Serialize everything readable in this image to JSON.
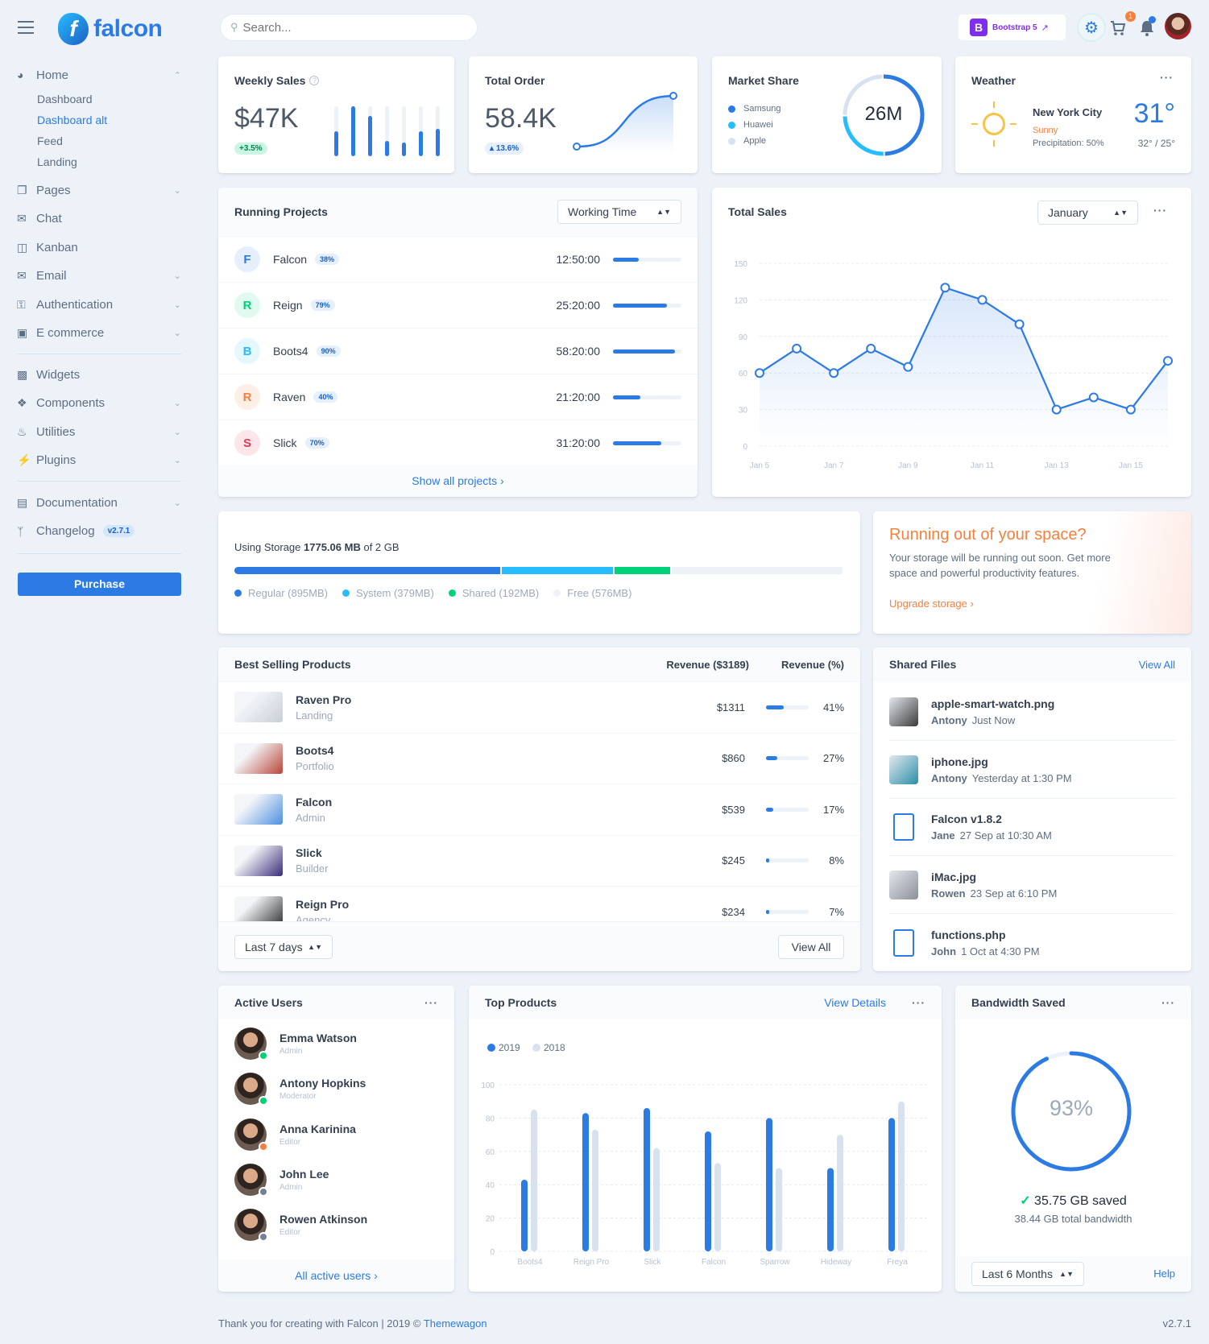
{
  "brand": {
    "name": "falcon",
    "menu_icon": "hamburger-icon",
    "logo_icon": "falcon-logo"
  },
  "topbar": {
    "search_placeholder": "Search...",
    "bootstrap_label": "Bootstrap 5",
    "cart_count": "1",
    "icons": [
      "gear-icon",
      "cart-icon",
      "bell-icon",
      "avatar"
    ]
  },
  "sidebar": {
    "home": {
      "label": "Home",
      "icon": "pie-chart-icon",
      "children": [
        "Dashboard",
        "Dashboard alt",
        "Feed",
        "Landing"
      ],
      "active_child": "Dashboard alt"
    },
    "items": [
      {
        "label": "Pages",
        "icon": "copy-icon",
        "chevron": true
      },
      {
        "label": "Chat",
        "icon": "comments-icon",
        "chevron": false
      },
      {
        "label": "Kanban",
        "icon": "trello-icon",
        "chevron": false
      },
      {
        "label": "Email",
        "icon": "envelope-open-icon",
        "chevron": true
      },
      {
        "label": "Authentication",
        "icon": "unlock-icon",
        "chevron": true
      },
      {
        "label": "E commerce",
        "icon": "cart-icon",
        "chevron": true
      }
    ],
    "items2": [
      {
        "label": "Widgets",
        "icon": "chart-icon",
        "chevron": false
      },
      {
        "label": "Components",
        "icon": "puzzle-icon",
        "chevron": true
      },
      {
        "label": "Utilities",
        "icon": "fire-icon",
        "chevron": true
      },
      {
        "label": "Plugins",
        "icon": "plug-icon",
        "chevron": true
      }
    ],
    "items3": [
      {
        "label": "Documentation",
        "icon": "book-icon",
        "chevron": true
      },
      {
        "label": "Changelog",
        "icon": "code-branch-icon",
        "chevron": false,
        "badge": "v2.7.1"
      }
    ],
    "purchase": "Purchase"
  },
  "weekly_sales": {
    "title": "Weekly Sales",
    "value": "$47K",
    "change": "+3.5%",
    "bars_percent": [
      50,
      100,
      80,
      30,
      28,
      50,
      55
    ]
  },
  "total_order": {
    "title": "Total Order",
    "value": "58.4K",
    "change": "13.6%"
  },
  "market_share": {
    "title": "Market Share",
    "total": "26M",
    "legend": [
      {
        "name": "Samsung",
        "color": "#2c7be5",
        "share": 50
      },
      {
        "name": "Huawei",
        "color": "#27bcfd",
        "share": 25
      },
      {
        "name": "Apple",
        "color": "#d8e2ef",
        "share": 25
      }
    ]
  },
  "weather": {
    "title": "Weather",
    "city": "New York City",
    "condition": "Sunny",
    "precipitation": "Precipitation: 50%",
    "temp": "31°",
    "range": "32° / 25°"
  },
  "running_projects": {
    "title": "Running Projects",
    "select": "Working Time",
    "footer": "Show all projects",
    "rows": [
      {
        "initial": "F",
        "name": "Falcon",
        "percent": "38%",
        "time": "12:50:00",
        "progress": 38,
        "color": "#2c7be5",
        "bg": "#e6effc"
      },
      {
        "initial": "R",
        "name": "Reign",
        "percent": "79%",
        "time": "25:20:00",
        "progress": 79,
        "color": "#00d27a",
        "bg": "#e0faef"
      },
      {
        "initial": "B",
        "name": "Boots4",
        "percent": "90%",
        "time": "58:20:00",
        "progress": 90,
        "color": "#27bcfd",
        "bg": "#e5f7ff"
      },
      {
        "initial": "R",
        "name": "Raven",
        "percent": "40%",
        "time": "21:20:00",
        "progress": 40,
        "color": "#f5803e",
        "bg": "#feefe6"
      },
      {
        "initial": "S",
        "name": "Slick",
        "percent": "70%",
        "time": "31:20:00",
        "progress": 70,
        "color": "#e63757",
        "bg": "#fce6ea"
      }
    ]
  },
  "total_sales": {
    "title": "Total Sales",
    "select": "January"
  },
  "storage": {
    "label": "Using Storage",
    "used": "1775.06 MB",
    "of": "of 2 GB",
    "segments": [
      {
        "name": "Regular (895MB)",
        "mb": 895,
        "color": "#2c7be5"
      },
      {
        "name": "System (379MB)",
        "mb": 379,
        "color": "#27bcfd"
      },
      {
        "name": "Shared (192MB)",
        "mb": 192,
        "color": "#00d27a"
      },
      {
        "name": "Free (576MB)",
        "mb": 576,
        "color": "#edf2f9"
      }
    ]
  },
  "upgrade": {
    "title": "Running out of your space?",
    "text": "Your storage will be running out soon. Get more space and powerful productivity features.",
    "link": "Upgrade storage"
  },
  "best_selling": {
    "title": "Best Selling Products",
    "col1": "Revenue ($3189)",
    "col2": "Revenue (%)",
    "select": "Last 7 days",
    "view_all": "View All",
    "rows": [
      {
        "name": "Raven Pro",
        "category": "Landing",
        "revenue": "$1311",
        "percent": "41%",
        "value": 41,
        "thumb": "#c9cfd8"
      },
      {
        "name": "Boots4",
        "category": "Portfolio",
        "revenue": "$860",
        "percent": "27%",
        "value": 27,
        "thumb": "#b8453a"
      },
      {
        "name": "Falcon",
        "category": "Admin",
        "revenue": "$539",
        "percent": "17%",
        "value": 17,
        "thumb": "#4d8fe0"
      },
      {
        "name": "Slick",
        "category": "Builder",
        "revenue": "$245",
        "percent": "8%",
        "value": 8,
        "thumb": "#3a2c7a"
      },
      {
        "name": "Reign Pro",
        "category": "Agency",
        "revenue": "$234",
        "percent": "7%",
        "value": 7,
        "thumb": "#2e2e2e"
      }
    ]
  },
  "shared_files": {
    "title": "Shared Files",
    "view_all": "View All",
    "rows": [
      {
        "name": "apple-smart-watch.png",
        "user": "Antony",
        "time": "Just Now",
        "type": "image",
        "color": "#3b3b3b"
      },
      {
        "name": "iphone.jpg",
        "user": "Antony",
        "time": "Yesterday at 1:30 PM",
        "type": "image",
        "color": "#2a8fa8"
      },
      {
        "name": "Falcon v1.8.2",
        "user": "Jane",
        "time": "27 Sep at 10:30 AM",
        "type": "zip-file-icon",
        "color": "#2c7be5"
      },
      {
        "name": "iMac.jpg",
        "user": "Rowen",
        "time": "23 Sep at 6:10 PM",
        "type": "image",
        "color": "#8a8f99"
      },
      {
        "name": "functions.php",
        "user": "John",
        "time": "1 Oct at 4:30 PM",
        "type": "document-file-icon",
        "color": "#2c7be5"
      }
    ]
  },
  "active_users": {
    "title": "Active Users",
    "footer": "All active users",
    "rows": [
      {
        "name": "Emma Watson",
        "role": "Admin",
        "status": "online",
        "status_color": "#00d27a"
      },
      {
        "name": "Antony Hopkins",
        "role": "Moderator",
        "status": "online",
        "status_color": "#00d27a"
      },
      {
        "name": "Anna Karinina",
        "role": "Editor",
        "status": "away",
        "status_color": "#f5803e"
      },
      {
        "name": "John Lee",
        "role": "Admin",
        "status": "offline",
        "status_color": "#748194"
      },
      {
        "name": "Rowen Atkinson",
        "role": "Editor",
        "status": "offline",
        "status_color": "#748194"
      }
    ]
  },
  "top_products": {
    "title": "Top Products",
    "view_details": "View Details"
  },
  "bandwidth": {
    "title": "Bandwidth Saved",
    "percent": 93,
    "percent_label": "93%",
    "saved": "35.75 GB saved",
    "total": "38.44 GB total bandwidth",
    "select": "Last 6 Months",
    "help": "Help"
  },
  "footer": {
    "text": "Thank you for creating with Falcon | 2019 ©",
    "link": "Themewagon",
    "version": "v2.7.1"
  },
  "chart_data": [
    {
      "type": "line",
      "title": "Total Sales",
      "x": [
        "Jan 5",
        "Jan 6",
        "Jan 7",
        "Jan 8",
        "Jan 9",
        "Jan 10",
        "Jan 11",
        "Jan 12",
        "Jan 13",
        "Jan 14",
        "Jan 15",
        "Jan 16"
      ],
      "xticks": [
        "Jan 5",
        "Jan 7",
        "Jan 9",
        "Jan 11",
        "Jan 13",
        "Jan 15"
      ],
      "yticks": [
        0,
        30,
        60,
        90,
        120,
        150
      ],
      "ylim": [
        0,
        150
      ],
      "values": [
        60,
        80,
        60,
        80,
        65,
        130,
        120,
        100,
        30,
        40,
        30,
        70
      ],
      "grid": true,
      "color": "#2c7be5"
    },
    {
      "type": "bar",
      "title": "Top Products",
      "categories": [
        "Boots4",
        "Reign Pro",
        "Slick",
        "Falcon",
        "Sparrow",
        "Hideway",
        "Freya"
      ],
      "yticks": [
        0,
        20,
        40,
        60,
        80,
        100
      ],
      "ylim": [
        0,
        100
      ],
      "legend": "top-left",
      "grid": true,
      "series": [
        {
          "name": "2019",
          "color": "#2c7be5",
          "values": [
            43,
            83,
            86,
            72,
            80,
            50,
            80
          ]
        },
        {
          "name": "2018",
          "color": "#d8e2ef",
          "values": [
            85,
            73,
            62,
            53,
            50,
            70,
            90
          ]
        }
      ]
    }
  ]
}
